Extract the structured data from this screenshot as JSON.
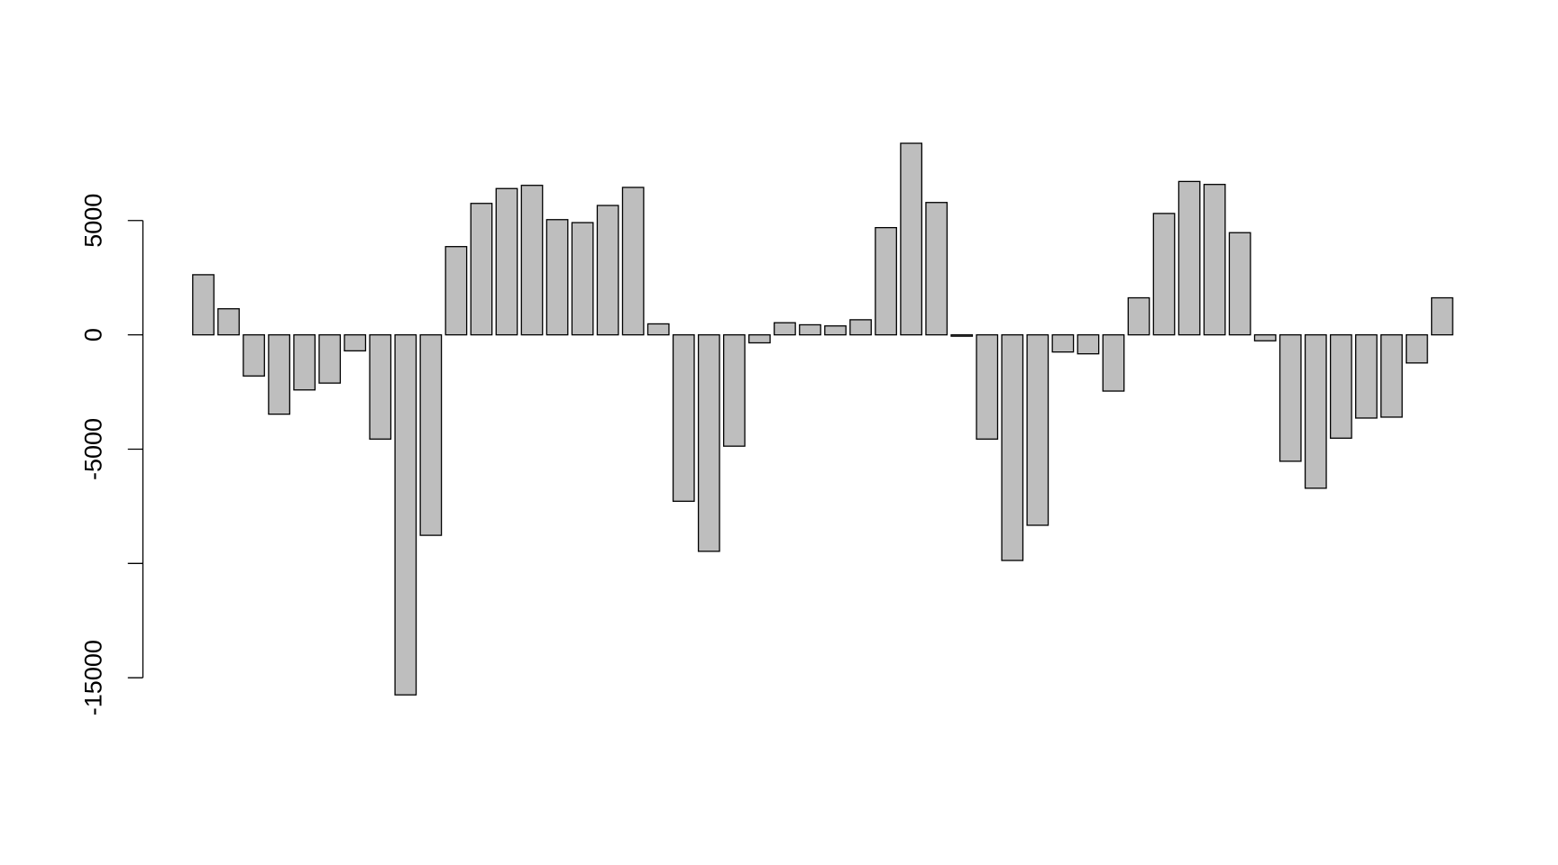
{
  "chart_data": {
    "type": "bar",
    "values": [
      2630,
      1140,
      -1800,
      -3470,
      -2410,
      -2110,
      -700,
      -4560,
      -15750,
      -8770,
      3860,
      5750,
      6400,
      6540,
      5040,
      4910,
      5660,
      6450,
      480,
      -7280,
      -9470,
      -4870,
      -350,
      530,
      440,
      390,
      660,
      4690,
      8380,
      5790,
      -60,
      -4560,
      -9870,
      -8330,
      -750,
      -830,
      -2460,
      1620,
      5310,
      6710,
      6580,
      4470,
      -260,
      -5530,
      -6710,
      -4520,
      -3640,
      -3600,
      -1230,
      1620
    ],
    "color": "#bebebe",
    "ylim": [
      -15800,
      8400
    ],
    "yticks": [
      -15000,
      {
        "value": -10000,
        "label": null
      },
      -5000,
      0,
      5000
    ]
  }
}
